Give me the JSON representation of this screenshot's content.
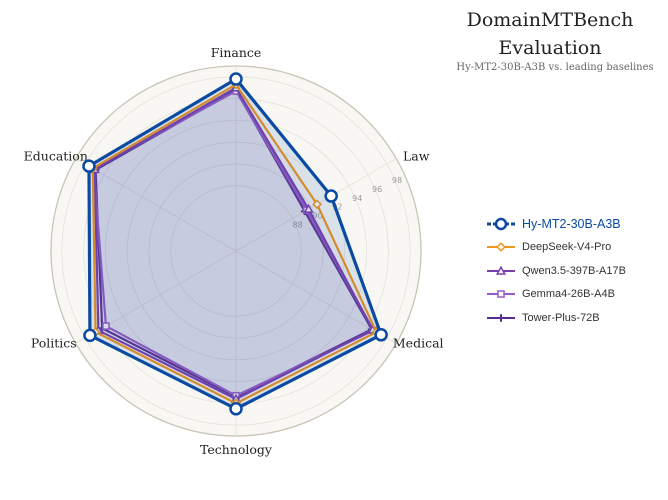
{
  "title": "DomainMTBench\nEvaluation",
  "title_line1": "DomainMTBench",
  "title_line2": "Evaluation",
  "subtitle": "Hy-MT2-30B-A3B vs. leading baselines",
  "chart_data": {
    "type": "radar",
    "axes": [
      "Finance",
      "Law",
      "Medical",
      "Technology",
      "Politics",
      "Education"
    ],
    "r_ticks": [
      88,
      90,
      92,
      94,
      96,
      98
    ],
    "rlim": [
      82,
      99
    ],
    "grid": true,
    "legend_position": "right",
    "series": [
      {
        "name": "Hy-MT2-30B-A3B",
        "color": "#0b4aa2",
        "marker": "circle",
        "primary": true,
        "values": [
          97.8,
          92.1,
          97.4,
          96.5,
          97.5,
          97.6
        ]
      },
      {
        "name": "DeepSeek-V4-Pro",
        "color": "#f0961d",
        "marker": "diamond",
        "values": [
          97.3,
          90.6,
          96.9,
          96.0,
          96.9,
          97.2
        ]
      },
      {
        "name": "Qwen3.5-397B-A17B",
        "color": "#7d3fae",
        "marker": "triangle",
        "values": [
          97.0,
          89.7,
          96.5,
          95.6,
          96.6,
          97.0
        ]
      },
      {
        "name": "Gemma4-26B-A4B",
        "color": "#9a5cc4",
        "marker": "square",
        "values": [
          96.7,
          89.5,
          96.6,
          95.3,
          95.8,
          97.1
        ]
      },
      {
        "name": "Tower-Plus-72B",
        "color": "#5a2d8c",
        "marker": "plus",
        "values": [
          96.8,
          89.3,
          96.4,
          95.4,
          96.2,
          96.9
        ]
      }
    ]
  }
}
